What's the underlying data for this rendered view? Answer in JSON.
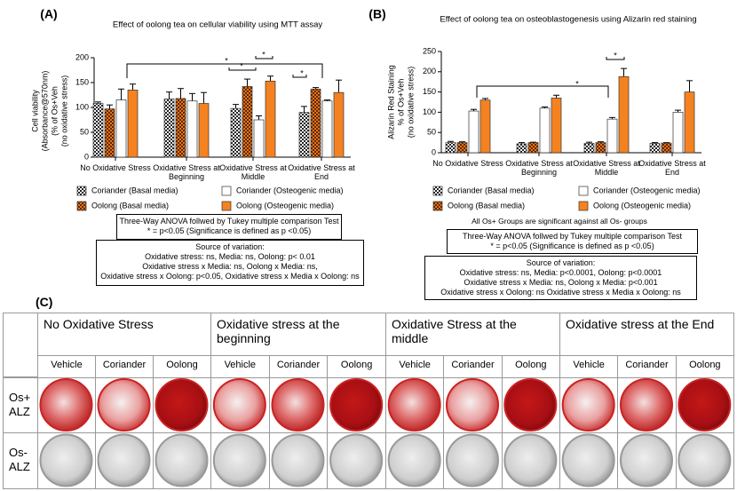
{
  "chart_data": [
    {
      "type": "bar",
      "panel": "(A)",
      "title": "Effect of oolong tea on cellular viability using MTT assay",
      "ylabel": [
        "Cell viability",
        "(Absorbance@570nm)",
        "(% of Os+Veh",
        "(no oxidative stress)"
      ],
      "categories": [
        "No Oxidative Stress",
        "Oxidative Stress at Beginning",
        "Oxidative Stress at Middle",
        "Oxidative Stress at End"
      ],
      "series": [
        {
          "name": "Coriander (Basal media)",
          "color": "#ffffff",
          "pattern": "check",
          "values": [
            108,
            117,
            98,
            90
          ],
          "errors": [
            3,
            14,
            8,
            12
          ]
        },
        {
          "name": "Oolong (Basal media)",
          "color": "#e8731a",
          "pattern": "check",
          "values": [
            97,
            118,
            142,
            137
          ],
          "errors": [
            8,
            20,
            15,
            3
          ]
        },
        {
          "name": "Coriander (Osteogenic media)",
          "color": "#ffffff",
          "values": [
            115,
            113,
            75,
            113
          ],
          "errors": [
            22,
            15,
            8,
            2
          ]
        },
        {
          "name": "Oolong (Osteogenic media)",
          "color": "#f58220",
          "values": [
            135,
            108,
            153,
            130
          ],
          "errors": [
            12,
            22,
            10,
            25
          ]
        }
      ],
      "ylim": [
        0,
        200
      ],
      "yticks": [
        0,
        50,
        100,
        150,
        200
      ],
      "annotations": [
        "*",
        "*",
        "*",
        "*"
      ],
      "notes": {
        "test": [
          "Three-Way ANOVA follwed by Tukey multiple comparison Test",
          "* = p<0.05 (Significance is defined as  p <0.05)"
        ],
        "source": [
          "Source of variation:",
          "Oxidative stress: ns, Media: ns, Oolong: p< 0.01",
          "Oxidative stress x Media: ns, Oolong x Media: ns,",
          "Oxidative stress x Oolong: p<0.05, Oxidative stress x Media x Oolong: ns"
        ]
      }
    },
    {
      "type": "bar",
      "panel": "(B)",
      "title": "Effect of oolong tea on osteoblastogenesis using Alizarin red staining",
      "ylabel": [
        "Alizarin Red Staining",
        "% of Os+Veh",
        "(no oxidative stress)"
      ],
      "categories": [
        "No Oxidative Stress",
        "Oxidative Stress at Beginning",
        "Oxidative Stress at Middle",
        "Oxidative Stress at End"
      ],
      "series": [
        {
          "name": "Coriander (Basal media)",
          "color": "#ffffff",
          "pattern": "check",
          "values": [
            25,
            22,
            23,
            23
          ],
          "errors": [
            3,
            3,
            3,
            2
          ]
        },
        {
          "name": "Oolong (Basal media)",
          "color": "#e8731a",
          "pattern": "check",
          "values": [
            25,
            25,
            25,
            24
          ],
          "errors": [
            2,
            1,
            2,
            1
          ]
        },
        {
          "name": "Coriander (Osteogenic media)",
          "color": "#ffffff",
          "values": [
            103,
            110,
            83,
            100
          ],
          "errors": [
            4,
            3,
            4,
            5
          ]
        },
        {
          "name": "Oolong (Osteogenic media)",
          "color": "#f58220",
          "values": [
            130,
            135,
            188,
            150
          ],
          "errors": [
            4,
            7,
            20,
            28
          ]
        }
      ],
      "ylim": [
        0,
        250
      ],
      "yticks": [
        0,
        50,
        100,
        150,
        200,
        250
      ],
      "annotations": [
        "*",
        "*"
      ],
      "notes": {
        "remark": "All Os+ Groups are significant against all Os- groups",
        "test": [
          "Three-Way ANOVA follwed by Tukey multiple comparison Test",
          "* = p<0.05 (Significance is defined as  p <0.05)"
        ],
        "source": [
          "Source of variation:",
          "Oxidative stress: ns, Media: p<0.0001, Oolong: p<0.0001",
          "Oxidative stress x Media: ns, Oolong x Media: p<0.001",
          "Oxidative stress x Oolong: ns Oxidative stress x Media x Oolong: ns"
        ]
      }
    }
  ],
  "table": {
    "panel": "(C)",
    "groups": [
      "No Oxidative Stress",
      "Oxidative stress at the beginning",
      "Oxidative Stress at the middle",
      "Oxidative stress at the End"
    ],
    "subheaders": [
      "Vehicle",
      "Coriander",
      "Oolong",
      "Vehicle",
      "Coriander",
      "Oolong",
      "Vehicle",
      "Coriander",
      "Oolong",
      "Vehicle",
      "Coriander",
      "Oolong"
    ],
    "rows": [
      "Os+ ALZ",
      "Os- ALZ"
    ]
  }
}
